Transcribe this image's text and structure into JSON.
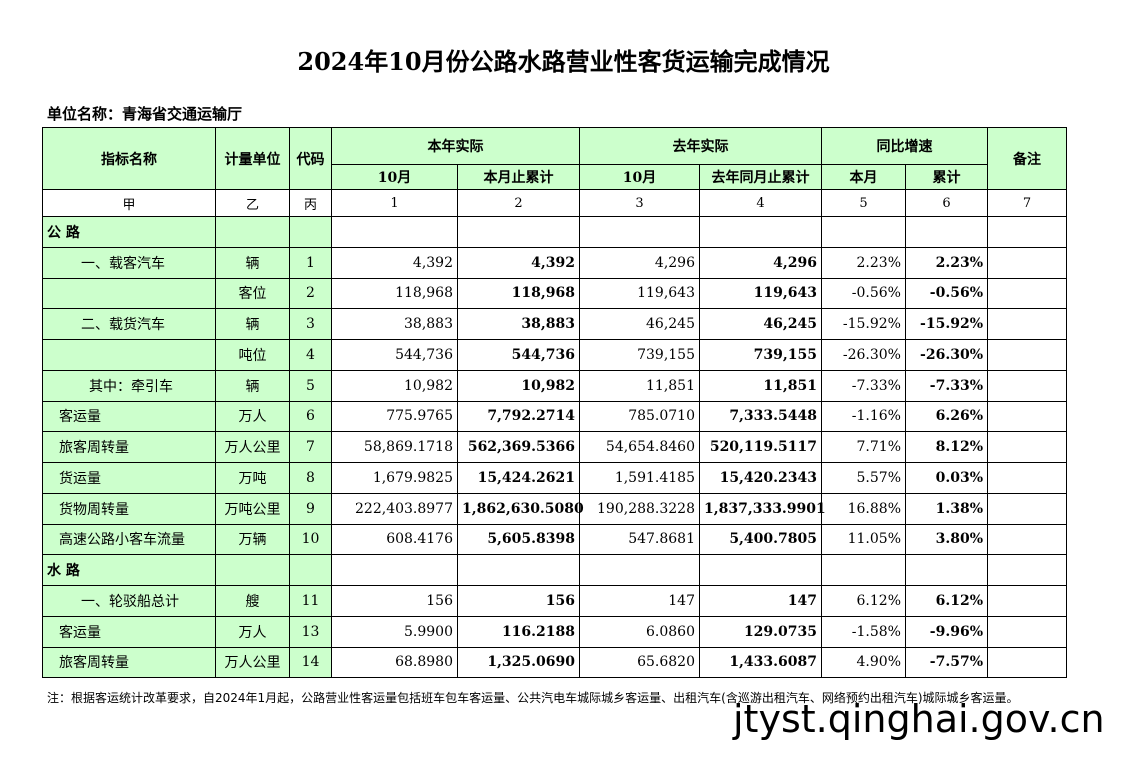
{
  "title": "2024年10月份公路水路营业性客货运输完成情况",
  "unit_label": "单位名称：青海省交通运输厅",
  "headers": {
    "indicator": "指标名称",
    "measure": "计量单位",
    "code": "代码",
    "this_year": "本年实际",
    "last_year": "去年实际",
    "growth": "同比增速",
    "remark": "备注",
    "oct": "10月",
    "cum_this": "本月止累计",
    "oct_last": "10月",
    "cum_last": "去年同月止累计",
    "this_month": "本月",
    "cumulative": "累计"
  },
  "index_row": [
    "甲",
    "乙",
    "丙",
    "1",
    "2",
    "3",
    "4",
    "5",
    "6",
    "7"
  ],
  "rows": [
    {
      "type": "section",
      "name": "公  路"
    },
    {
      "type": "data",
      "name": "一、载客汽车",
      "unit": "辆",
      "code": "1",
      "m": "4,392",
      "cm": "4,392",
      "lm": "4,296",
      "clm": "4,296",
      "g": "2.23%",
      "cg": "2.23%",
      "indent": "main"
    },
    {
      "type": "data",
      "name": "",
      "unit": "客位",
      "code": "2",
      "m": "118,968",
      "cm": "118,968",
      "lm": "119,643",
      "clm": "119,643",
      "g": "-0.56%",
      "cg": "-0.56%",
      "indent": "main"
    },
    {
      "type": "data",
      "name": "二、载货汽车",
      "unit": "辆",
      "code": "3",
      "m": "38,883",
      "cm": "38,883",
      "lm": "46,245",
      "clm": "46,245",
      "g": "-15.92%",
      "cg": "-15.92%",
      "indent": "main"
    },
    {
      "type": "data",
      "name": "",
      "unit": "吨位",
      "code": "4",
      "m": "544,736",
      "cm": "544,736",
      "lm": "739,155",
      "clm": "739,155",
      "g": "-26.30%",
      "cg": "-26.30%",
      "indent": "main"
    },
    {
      "type": "data",
      "name": "其中：牵引车",
      "unit": "辆",
      "code": "5",
      "m": "10,982",
      "cm": "10,982",
      "lm": "11,851",
      "clm": "11,851",
      "g": "-7.33%",
      "cg": "-7.33%",
      "indent": "sub"
    },
    {
      "type": "data",
      "name": "客运量",
      "unit": "万人",
      "code": "6",
      "m": "775.9765",
      "cm": "7,792.2714",
      "lm": "785.0710",
      "clm": "7,333.5448",
      "g": "-1.16%",
      "cg": "6.26%",
      "indent": "plain"
    },
    {
      "type": "data",
      "name": "旅客周转量",
      "unit": "万人公里",
      "code": "7",
      "m": "58,869.1718",
      "cm": "562,369.5366",
      "lm": "54,654.8460",
      "clm": "520,119.5117",
      "g": "7.71%",
      "cg": "8.12%",
      "indent": "plain"
    },
    {
      "type": "data",
      "name": "货运量",
      "unit": "万吨",
      "code": "8",
      "m": "1,679.9825",
      "cm": "15,424.2621",
      "lm": "1,591.4185",
      "clm": "15,420.2343",
      "g": "5.57%",
      "cg": "0.03%",
      "indent": "plain"
    },
    {
      "type": "data",
      "name": "货物周转量",
      "unit": "万吨公里",
      "code": "9",
      "m": "222,403.8977",
      "cm": "1,862,630.5080",
      "lm": "190,288.3228",
      "clm": "1,837,333.9901",
      "g": "16.88%",
      "cg": "1.38%",
      "indent": "plain"
    },
    {
      "type": "data",
      "name": "高速公路小客车流量",
      "unit": "万辆",
      "code": "10",
      "m": "608.4176",
      "cm": "5,605.8398",
      "lm": "547.8681",
      "clm": "5,400.7805",
      "g": "11.05%",
      "cg": "3.80%",
      "indent": "plain"
    },
    {
      "type": "section",
      "name": "水  路"
    },
    {
      "type": "data",
      "name": "一、轮驳船总计",
      "unit": "艘",
      "code": "11",
      "m": "156",
      "cm": "156",
      "lm": "147",
      "clm": "147",
      "g": "6.12%",
      "cg": "6.12%",
      "indent": "main"
    },
    {
      "type": "data",
      "name": "客运量",
      "unit": "万人",
      "code": "13",
      "m": "5.9900",
      "cm": "116.2188",
      "lm": "6.0860",
      "clm": "129.0735",
      "g": "-1.58%",
      "cg": "-9.96%",
      "indent": "plain"
    },
    {
      "type": "data",
      "name": "旅客周转量",
      "unit": "万人公里",
      "code": "14",
      "m": "68.8980",
      "cm": "1,325.0690",
      "lm": "65.6820",
      "clm": "1,433.6087",
      "g": "4.90%",
      "cg": "-7.57%",
      "indent": "plain"
    }
  ],
  "note": "注：根据客运统计改革要求，自2024年1月起，公路营业性客运量包括班车包车客运量、公共汽电车城际城乡客运量、出租汽车(含巡游出租汽车、网络预约出租汽车)城际城乡客运量。",
  "watermark": "jtyst.qinghai.gov.cn"
}
